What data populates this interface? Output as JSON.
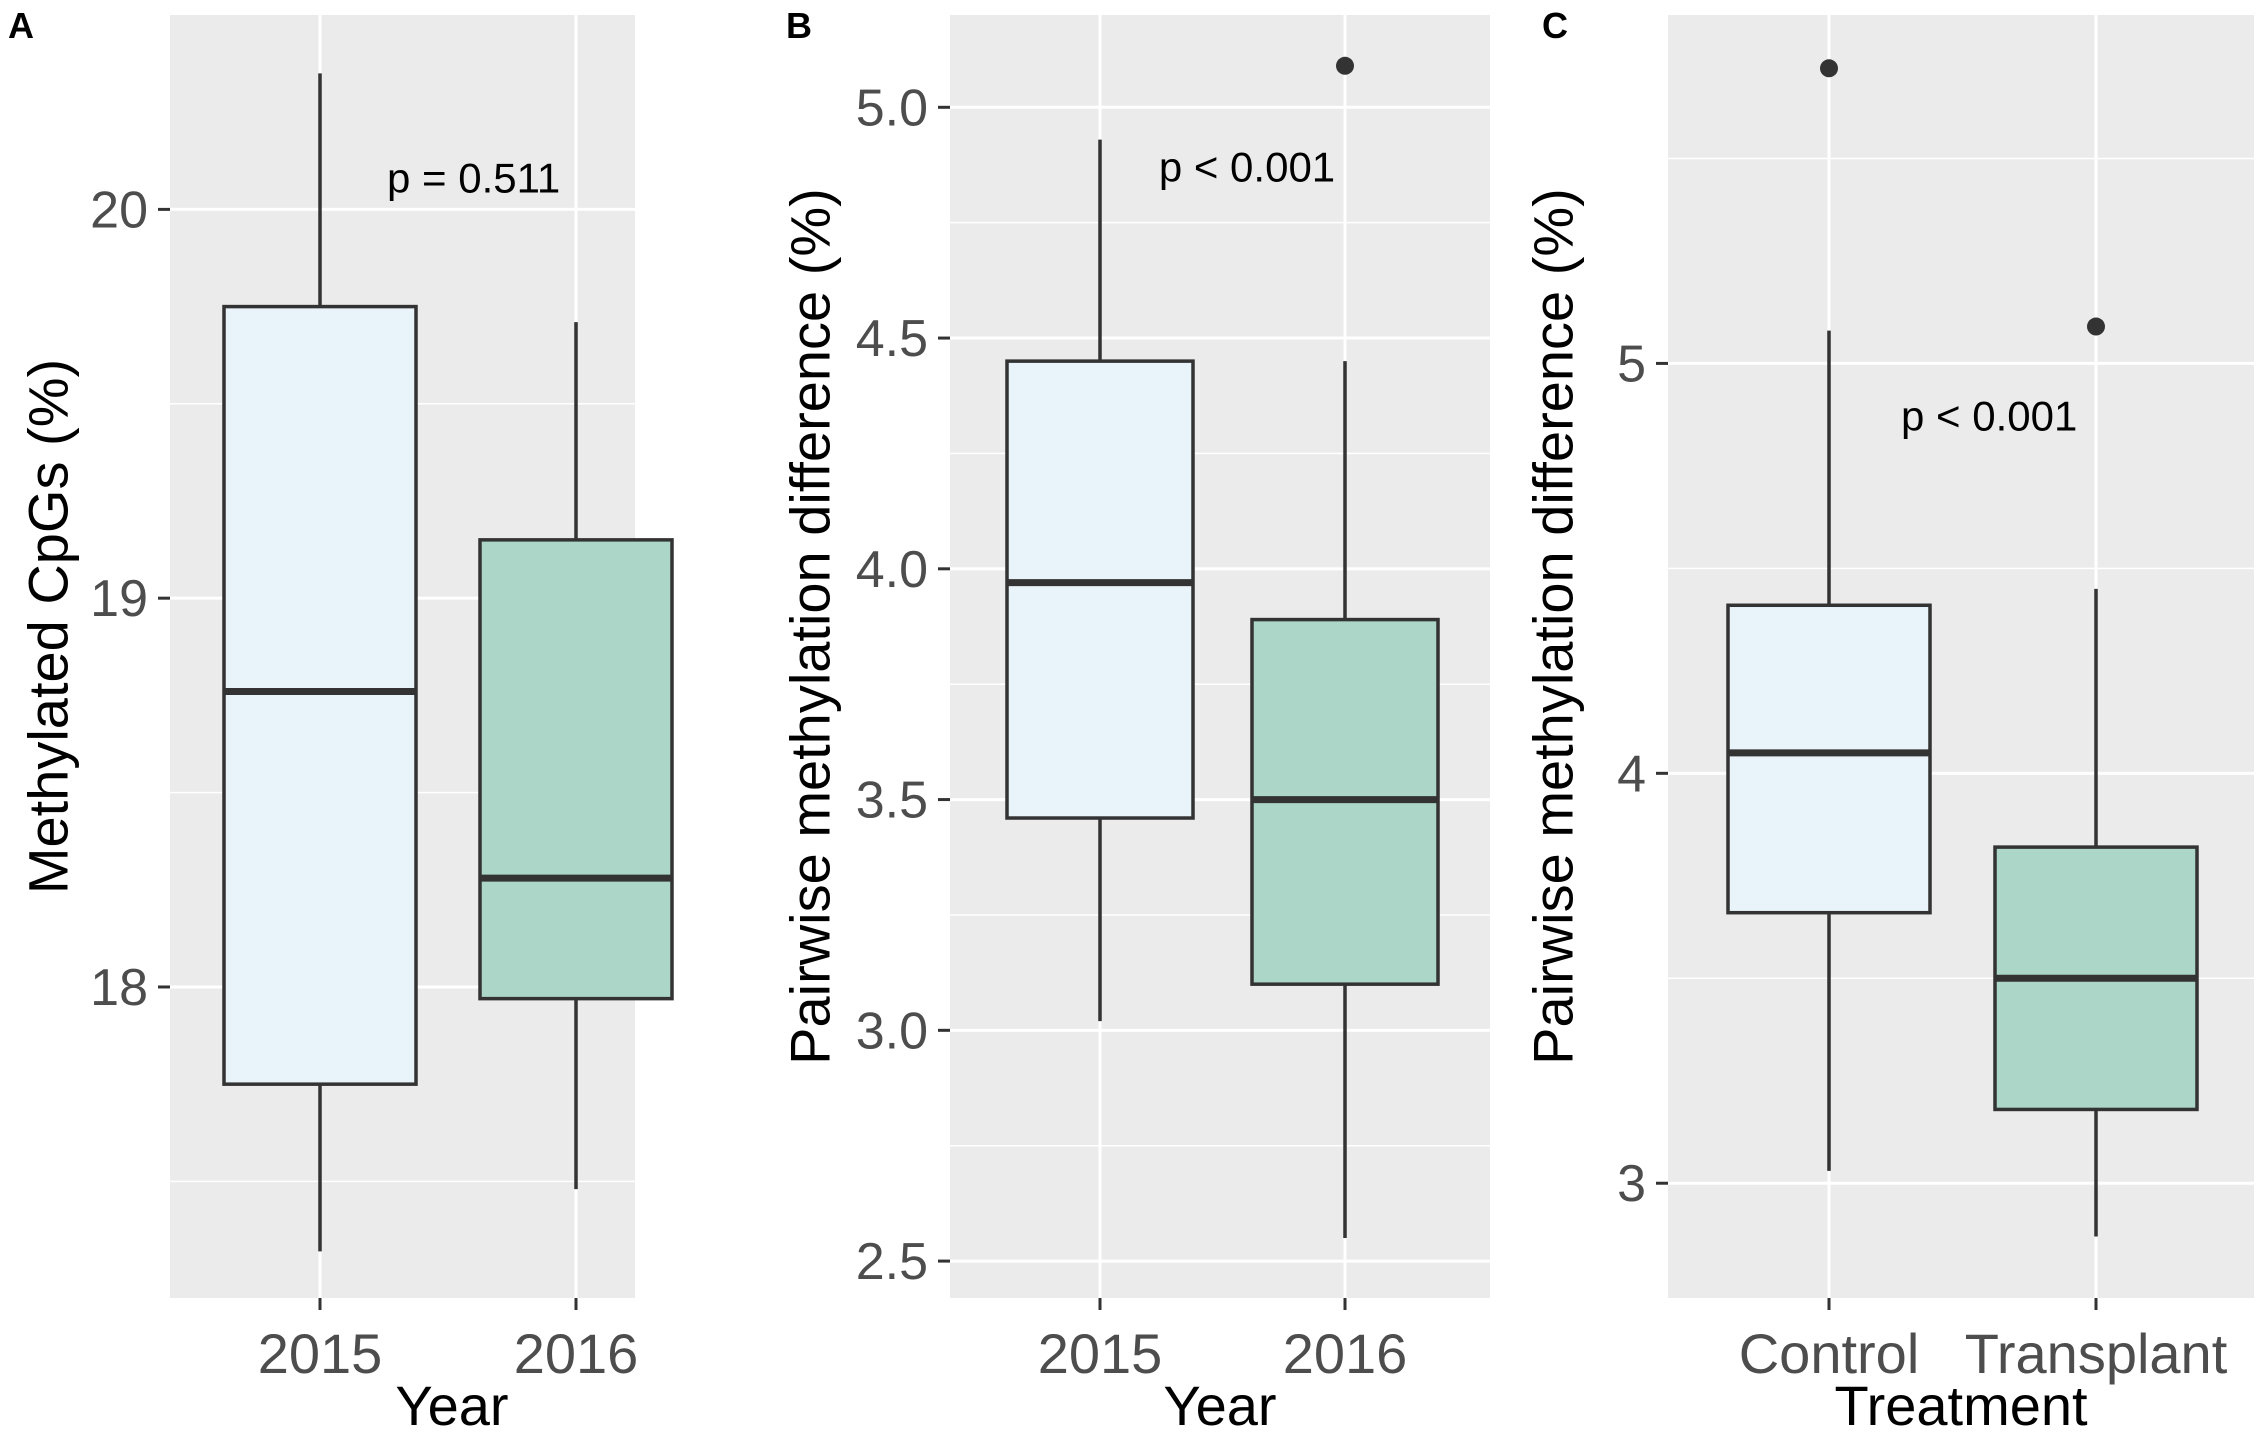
{
  "colors": {
    "box_2015": "#e8f3fa",
    "box_2016": "#acd7c8",
    "panel_bg": "#ebebeb",
    "line": "#333333"
  },
  "chart_data": [
    {
      "tag": "A",
      "type": "box",
      "xlabel": "Year",
      "ylabel": "Methylated CpGs (%)",
      "ylim": [
        17.2,
        20.5
      ],
      "yticks": [
        18,
        19,
        20
      ],
      "ytick_labels": [
        "18",
        "19",
        "20"
      ],
      "minor_ticks": [
        17.5,
        18.5,
        19.5
      ],
      "annotation": {
        "text": "p = 0.511",
        "x": 1.6,
        "y": 20.08
      },
      "groups": [
        {
          "label": "2015",
          "min": 17.32,
          "q1": 17.75,
          "median": 18.76,
          "q3": 19.75,
          "max": 20.35,
          "outliers": []
        },
        {
          "label": "2016",
          "min": 17.48,
          "q1": 17.97,
          "median": 18.28,
          "q3": 19.15,
          "max": 19.71,
          "outliers": []
        }
      ]
    },
    {
      "tag": "B",
      "type": "box",
      "xlabel": "Year",
      "ylabel": "Pairwise methylation difference (%)",
      "ylim": [
        2.42,
        5.2
      ],
      "yticks": [
        2.5,
        3.0,
        3.5,
        4.0,
        4.5,
        5.0
      ],
      "ytick_labels": [
        "2.5",
        "3.0",
        "3.5",
        "4.0",
        "4.5",
        "5.0"
      ],
      "minor_ticks": [
        2.75,
        3.25,
        3.75,
        4.25,
        4.75
      ],
      "annotation": {
        "text": "p < 0.001",
        "x": 1.6,
        "y": 4.87
      },
      "groups": [
        {
          "label": "2015",
          "min": 3.02,
          "q1": 3.46,
          "median": 3.97,
          "q3": 4.45,
          "max": 4.93,
          "outliers": []
        },
        {
          "label": "2016",
          "min": 2.55,
          "q1": 3.1,
          "median": 3.5,
          "q3": 3.89,
          "max": 4.45,
          "outliers": [
            5.09
          ]
        }
      ]
    },
    {
      "tag": "C",
      "type": "box",
      "xlabel": "Treatment",
      "ylabel": "Pairwise methylation difference (%)",
      "ylim": [
        2.72,
        5.85
      ],
      "yticks": [
        3,
        4,
        5
      ],
      "ytick_labels": [
        "3",
        "4",
        "5"
      ],
      "minor_ticks": [
        3.5,
        4.5,
        5.5
      ],
      "annotation": {
        "text": "p < 0.001",
        "x": 1.6,
        "y": 4.87
      },
      "groups": [
        {
          "label": "Control",
          "min": 3.03,
          "q1": 3.66,
          "median": 4.05,
          "q3": 4.41,
          "max": 5.08,
          "outliers": [
            5.72
          ]
        },
        {
          "label": "Transplant",
          "min": 2.87,
          "q1": 3.18,
          "median": 3.5,
          "q3": 3.82,
          "max": 4.45,
          "outliers": [
            5.09
          ]
        }
      ]
    }
  ]
}
